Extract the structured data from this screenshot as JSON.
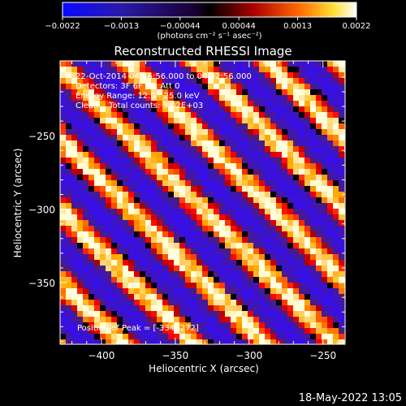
{
  "chart_data": {
    "type": "heatmap",
    "title": "Reconstructed RHESSI Image",
    "xlabel": "Heliocentric X (arcsec)",
    "ylabel": "Heliocentric Y (arcsec)",
    "xlim": [
      -428,
      -235
    ],
    "ylim": [
      -392,
      -199
    ],
    "xticks": [
      -400,
      -350,
      -300,
      -250
    ],
    "yticks": [
      -250,
      -300,
      -350
    ],
    "xtick_labels": [
      "−400",
      "−350",
      "−300",
      "−250"
    ],
    "ytick_labels": [
      "−250",
      "−300",
      "−350"
    ],
    "annotations": [
      "22-Oct-2014 04:46:56.000 to 04:52:56.000",
      "Detectors: 3F 6F 9F, Att 0",
      "Energy Range: 12.0 - 25.0 keV",
      "Clean    Total counts: 3.02E+03"
    ],
    "peak_text": "Position of Peak = [-334,-272]",
    "colorbar": {
      "min": -0.0022,
      "max": 0.0022,
      "tick_labels": [
        "−0.0022",
        "−0.0013",
        "−0.00044",
        "0.00044",
        "0.0013",
        "0.0022"
      ],
      "unit": "(photons cm⁻² s⁻¹ asec⁻²)"
    },
    "image_pattern": {
      "description_note": "diagonal fringe stripes running from upper-left to lower-right",
      "stripe_count": 4
    }
  },
  "footer": {
    "date": "18-May-2022 13:05"
  },
  "colors": {
    "background": "#000000",
    "colorbar_low": "#0000ff",
    "colorbar_mid": "#000000",
    "colorbar_high": "#ffffff"
  }
}
